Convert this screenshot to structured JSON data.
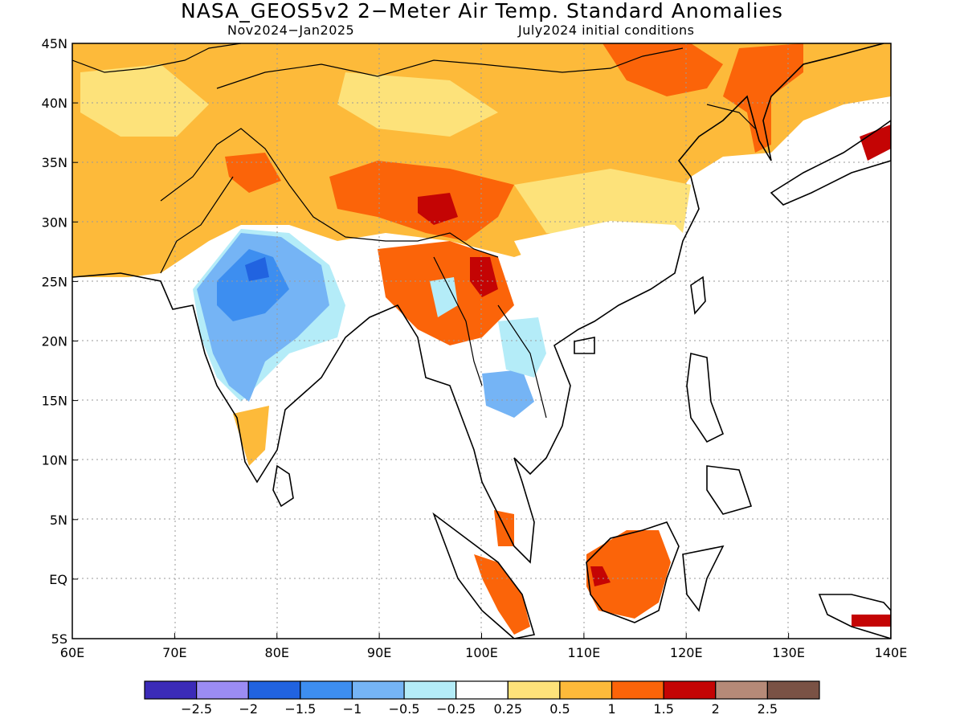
{
  "title": "NASA_GEOS5v2 2−Meter Air Temp. Standard Anomalies",
  "subtitle_left": "Nov2024−Jan2025",
  "subtitle_right": "July2024 initial conditions",
  "lon_labels": [
    "60E",
    "70E",
    "80E",
    "90E",
    "100E",
    "110E",
    "120E",
    "130E",
    "140E"
  ],
  "lat_labels": [
    "45N",
    "40N",
    "35N",
    "30N",
    "25N",
    "20N",
    "15N",
    "10N",
    "5N",
    "EQ",
    "5S"
  ],
  "colorbar": {
    "colors": [
      "#3b2bb8",
      "#9b8cf3",
      "#2163e0",
      "#3d8ef0",
      "#75b4f5",
      "#b4ecf8",
      "#ffffff",
      "#fde27a",
      "#fdba3a",
      "#fb6409",
      "#c40404",
      "#b58a78",
      "#7a5245"
    ],
    "labels": [
      "−2.5",
      "−2",
      "−1.5",
      "−1",
      "−0.5",
      "−0.25",
      "0.25",
      "0.5",
      "1",
      "1.5",
      "2",
      "2.5"
    ]
  }
}
